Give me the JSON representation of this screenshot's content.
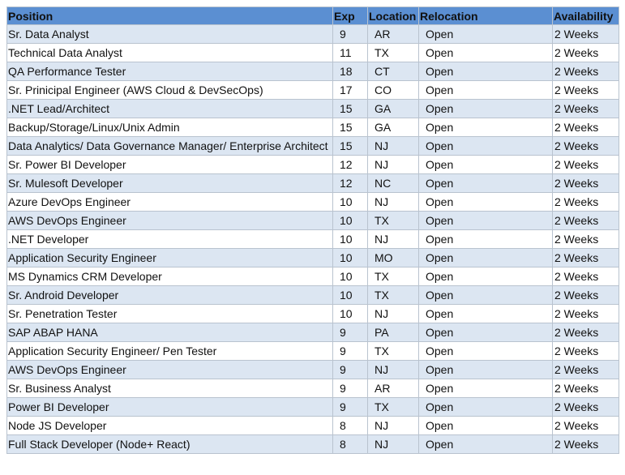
{
  "table": {
    "header": [
      "Position",
      "Exp",
      "Location",
      "Relocation",
      "Availability"
    ],
    "rows": [
      [
        "Sr. Data Analyst",
        "9",
        "AR",
        "Open",
        "2 Weeks"
      ],
      [
        "Technical Data Analyst",
        "11",
        "TX",
        "Open",
        "2 Weeks"
      ],
      [
        "QA Performance Tester",
        "18",
        "CT",
        "Open",
        "2 Weeks"
      ],
      [
        "Sr. Prinicipal Engineer (AWS Cloud & DevSecOps)",
        "17",
        "CO",
        "Open",
        "2 Weeks"
      ],
      [
        ".NET Lead/Architect",
        "15",
        "GA",
        "Open",
        "2 Weeks"
      ],
      [
        "Backup/Storage/Linux/Unix Admin",
        "15",
        "GA",
        "Open",
        "2 Weeks"
      ],
      [
        "Data Analytics/ Data Governance Manager/ Enterprise Architect",
        "15",
        "NJ",
        "Open",
        "2 Weeks"
      ],
      [
        "Sr. Power BI Developer",
        "12",
        "NJ",
        "Open",
        "2 Weeks"
      ],
      [
        "Sr. Mulesoft Developer",
        "12",
        "NC",
        "Open",
        "2 Weeks"
      ],
      [
        "Azure DevOps Engineer",
        "10",
        "NJ",
        "Open",
        "2 Weeks"
      ],
      [
        "AWS DevOps Engineer",
        "10",
        "TX",
        "Open",
        "2 Weeks"
      ],
      [
        ".NET Developer",
        "10",
        "NJ",
        "Open",
        "2 Weeks"
      ],
      [
        "Application Security Engineer",
        "10",
        "MO",
        "Open",
        "2 Weeks"
      ],
      [
        "MS Dynamics CRM Developer",
        "10",
        "TX",
        "Open",
        "2 Weeks"
      ],
      [
        "Sr. Android Developer",
        "10",
        "TX",
        "Open",
        "2 Weeks"
      ],
      [
        "Sr. Penetration Tester",
        "10",
        "NJ",
        "Open",
        "2 Weeks"
      ],
      [
        "SAP ABAP HANA",
        "9",
        "PA",
        "Open",
        "2 Weeks"
      ],
      [
        "Application Security Engineer/ Pen Tester",
        "9",
        "TX",
        "Open",
        "2 Weeks"
      ],
      [
        "AWS DevOps Engineer",
        "9",
        "NJ",
        "Open",
        "2 Weeks"
      ],
      [
        "Sr. Business Analyst",
        "9",
        "AR",
        "Open",
        "2 Weeks"
      ],
      [
        "Power BI Developer",
        "9",
        "TX",
        "Open",
        "2 Weeks"
      ],
      [
        "Node JS Developer",
        "8",
        "NJ",
        "Open",
        "2 Weeks"
      ],
      [
        "Full Stack Developer (Node+ React)",
        "8",
        "NJ",
        "Open",
        "2 Weeks"
      ]
    ]
  }
}
